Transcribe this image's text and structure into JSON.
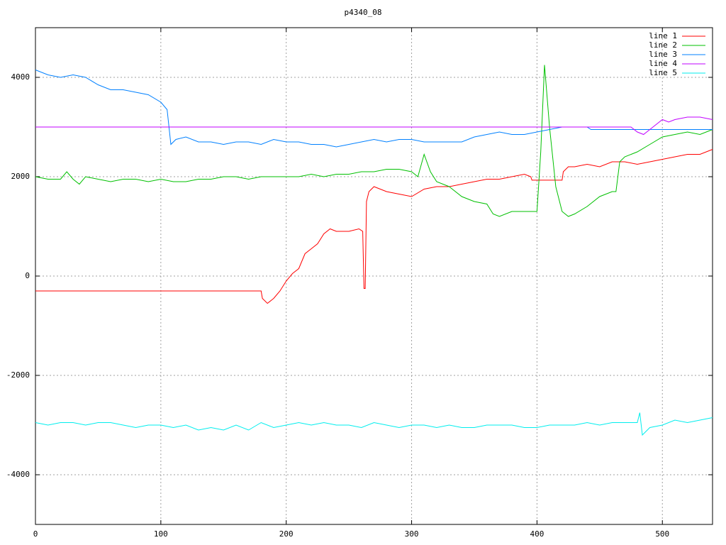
{
  "chart_data": {
    "type": "line",
    "title": "p4340_08",
    "xlim": [
      0,
      540
    ],
    "xticks": [
      0,
      100,
      200,
      300,
      400,
      500
    ],
    "ylim": [
      -5000,
      5000
    ],
    "yticks": [
      -4000,
      -2000,
      0,
      2000,
      4000
    ],
    "grid": true,
    "legend": "top-right",
    "series": [
      {
        "name": "line 1",
        "color": "#ff0000",
        "x": [
          0,
          180,
          181,
          185,
          190,
          195,
          200,
          205,
          210,
          215,
          220,
          225,
          230,
          235,
          240,
          250,
          258,
          261,
          262,
          263,
          264,
          266,
          270,
          280,
          290,
          300,
          310,
          320,
          330,
          340,
          350,
          360,
          370,
          380,
          390,
          395,
          396,
          420,
          421,
          425,
          430,
          440,
          450,
          460,
          470,
          480,
          490,
          500,
          510,
          520,
          530,
          540
        ],
        "values": [
          -300,
          -300,
          -450,
          -550,
          -450,
          -300,
          -100,
          50,
          150,
          450,
          550,
          650,
          850,
          950,
          900,
          900,
          950,
          900,
          -250,
          -250,
          1500,
          1700,
          1800,
          1700,
          1650,
          1600,
          1750,
          1800,
          1800,
          1850,
          1900,
          1950,
          1950,
          2000,
          2050,
          2000,
          1930,
          1930,
          2100,
          2200,
          2200,
          2250,
          2200,
          2300,
          2300,
          2250,
          2300,
          2350,
          2400,
          2450,
          2450,
          2550
        ]
      },
      {
        "name": "line 2",
        "color": "#00c000",
        "x": [
          0,
          10,
          20,
          25,
          30,
          35,
          40,
          50,
          60,
          70,
          80,
          90,
          100,
          110,
          120,
          130,
          140,
          150,
          160,
          170,
          180,
          190,
          200,
          210,
          220,
          230,
          240,
          250,
          260,
          270,
          280,
          290,
          300,
          305,
          310,
          315,
          320,
          330,
          340,
          350,
          360,
          365,
          370,
          380,
          390,
          400,
          403,
          406,
          410,
          415,
          420,
          425,
          430,
          440,
          450,
          460,
          463,
          466,
          470,
          480,
          490,
          500,
          510,
          520,
          530,
          540
        ],
        "values": [
          2000,
          1950,
          1950,
          2100,
          1950,
          1850,
          2000,
          1950,
          1900,
          1950,
          1950,
          1900,
          1950,
          1900,
          1900,
          1950,
          1950,
          2000,
          2000,
          1950,
          2000,
          2000,
          2000,
          2000,
          2050,
          2000,
          2050,
          2050,
          2100,
          2100,
          2150,
          2150,
          2100,
          2000,
          2450,
          2100,
          1900,
          1800,
          1600,
          1500,
          1450,
          1250,
          1200,
          1300,
          1300,
          1300,
          2500,
          4250,
          3000,
          1800,
          1300,
          1200,
          1250,
          1400,
          1600,
          1700,
          1700,
          2300,
          2400,
          2500,
          2650,
          2800,
          2850,
          2900,
          2850,
          2950
        ]
      },
      {
        "name": "line 3",
        "color": "#0080ff",
        "x": [
          0,
          10,
          20,
          30,
          40,
          50,
          60,
          70,
          80,
          90,
          100,
          105,
          108,
          112,
          120,
          130,
          140,
          150,
          160,
          170,
          180,
          190,
          200,
          210,
          220,
          230,
          240,
          250,
          260,
          270,
          280,
          290,
          300,
          310,
          320,
          330,
          340,
          350,
          360,
          370,
          380,
          390,
          400,
          410,
          420,
          430,
          440,
          443,
          540
        ],
        "values": [
          4150,
          4050,
          4000,
          4050,
          4000,
          3850,
          3750,
          3750,
          3700,
          3650,
          3500,
          3350,
          2650,
          2750,
          2800,
          2700,
          2700,
          2650,
          2700,
          2700,
          2650,
          2750,
          2700,
          2700,
          2650,
          2650,
          2600,
          2650,
          2700,
          2750,
          2700,
          2750,
          2750,
          2700,
          2700,
          2700,
          2700,
          2800,
          2850,
          2900,
          2850,
          2850,
          2900,
          2950,
          3000,
          3000,
          3000,
          2950,
          2950
        ]
      },
      {
        "name": "line 4",
        "color": "#c000ff",
        "x": [
          0,
          470,
          475,
          480,
          485,
          490,
          495,
          500,
          505,
          510,
          520,
          530,
          540
        ],
        "values": [
          3000,
          3000,
          3000,
          2900,
          2850,
          2950,
          3050,
          3150,
          3100,
          3150,
          3200,
          3200,
          3150
        ]
      },
      {
        "name": "line 5",
        "color": "#00eeee",
        "x": [
          0,
          10,
          20,
          30,
          40,
          50,
          60,
          70,
          80,
          90,
          100,
          110,
          120,
          130,
          140,
          150,
          160,
          170,
          180,
          190,
          200,
          210,
          220,
          230,
          240,
          250,
          260,
          270,
          280,
          290,
          300,
          310,
          320,
          330,
          340,
          350,
          360,
          370,
          380,
          390,
          400,
          410,
          420,
          430,
          440,
          450,
          460,
          470,
          480,
          482,
          484,
          490,
          500,
          510,
          520,
          530,
          540
        ],
        "values": [
          -2950,
          -3000,
          -2950,
          -2950,
          -3000,
          -2950,
          -2950,
          -3000,
          -3050,
          -3000,
          -3000,
          -3050,
          -3000,
          -3100,
          -3050,
          -3100,
          -3000,
          -3100,
          -2950,
          -3050,
          -3000,
          -2950,
          -3000,
          -2950,
          -3000,
          -3000,
          -3050,
          -2950,
          -3000,
          -3050,
          -3000,
          -3000,
          -3050,
          -3000,
          -3050,
          -3050,
          -3000,
          -3000,
          -3000,
          -3050,
          -3050,
          -3000,
          -3000,
          -3000,
          -2950,
          -3000,
          -2950,
          -2950,
          -2950,
          -2750,
          -3200,
          -3050,
          -3000,
          -2900,
          -2950,
          -2900,
          -2850
        ]
      }
    ]
  }
}
